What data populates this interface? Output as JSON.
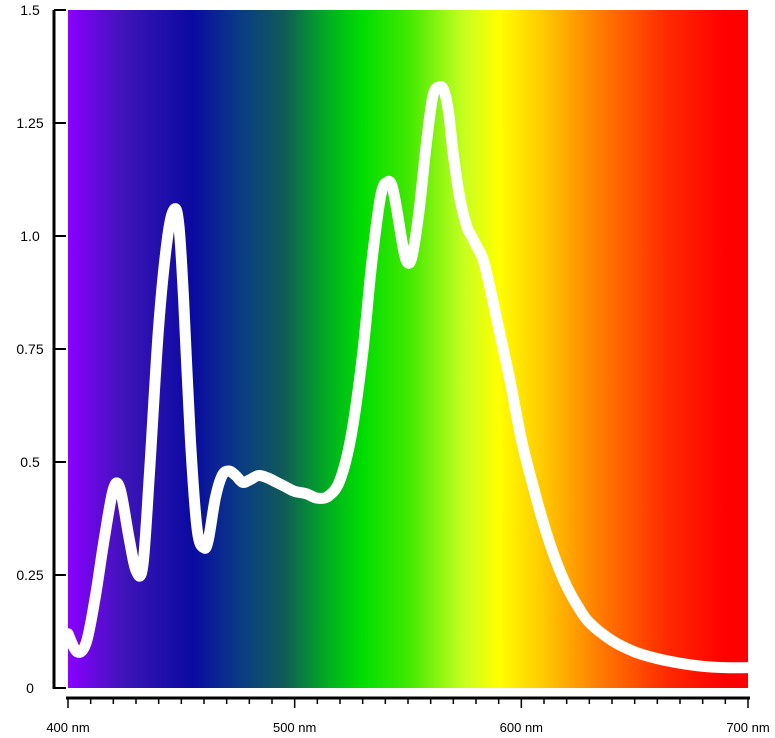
{
  "chart_data": {
    "type": "line",
    "title": "",
    "xlabel": "",
    "ylabel": "",
    "xlim": [
      400,
      700
    ],
    "ylim": [
      0,
      1.5
    ],
    "xtick_labels": [
      {
        "value": 400,
        "label": "400 nm"
      },
      {
        "value": 500,
        "label": "500 nm"
      },
      {
        "value": 600,
        "label": "600 nm"
      },
      {
        "value": 700,
        "label": "700 nm"
      }
    ],
    "ytick_labels": [
      {
        "value": 0,
        "label": "0"
      },
      {
        "value": 0.25,
        "label": "0.25"
      },
      {
        "value": 0.5,
        "label": "0.5"
      },
      {
        "value": 0.75,
        "label": "0.75"
      },
      {
        "value": 1.0,
        "label": "1.0"
      },
      {
        "value": 1.25,
        "label": "1.25"
      },
      {
        "value": 1.5,
        "label": "1.5"
      }
    ],
    "background": "visible spectrum gradient",
    "spectrum_colors": [
      {
        "nm": 400,
        "color": "#8A00FF"
      },
      {
        "nm": 425,
        "color": "#3D14B8"
      },
      {
        "nm": 455,
        "color": "#0A0AA0"
      },
      {
        "nm": 475,
        "color": "#0A3A86"
      },
      {
        "nm": 495,
        "color": "#105A58"
      },
      {
        "nm": 515,
        "color": "#00B020"
      },
      {
        "nm": 530,
        "color": "#00DD00"
      },
      {
        "nm": 550,
        "color": "#40E800"
      },
      {
        "nm": 575,
        "color": "#C8FF20"
      },
      {
        "nm": 590,
        "color": "#FFFF00"
      },
      {
        "nm": 610,
        "color": "#FFC800"
      },
      {
        "nm": 635,
        "color": "#FF7A00"
      },
      {
        "nm": 665,
        "color": "#FF2800"
      },
      {
        "nm": 690,
        "color": "#FF0000"
      },
      {
        "nm": 700,
        "color": "#FF0000"
      }
    ],
    "series": [
      {
        "color": "#FFFFFF",
        "x": [
          400,
          404,
          408,
          412,
          416,
          420,
          423,
          427,
          430,
          433,
          436,
          440,
          444,
          447,
          449,
          451,
          454,
          457,
          460,
          462,
          465,
          468,
          471,
          474,
          477,
          480,
          484,
          488,
          492,
          496,
          500,
          505,
          510,
          515,
          520,
          525,
          530,
          534,
          538,
          541,
          543,
          545,
          548,
          550,
          552,
          555,
          558,
          561,
          564,
          566,
          568,
          570,
          573,
          576,
          578,
          580,
          583,
          586,
          589,
          592,
          595,
          600,
          605,
          610,
          615,
          620,
          625,
          630,
          640,
          650,
          660,
          670,
          680,
          690,
          700
        ],
        "y": [
          0.12,
          0.08,
          0.1,
          0.2,
          0.33,
          0.44,
          0.44,
          0.33,
          0.26,
          0.27,
          0.48,
          0.8,
          1.0,
          1.06,
          1.02,
          0.86,
          0.55,
          0.35,
          0.31,
          0.33,
          0.42,
          0.47,
          0.48,
          0.47,
          0.455,
          0.46,
          0.47,
          0.465,
          0.455,
          0.445,
          0.435,
          0.43,
          0.42,
          0.425,
          0.46,
          0.56,
          0.74,
          0.94,
          1.09,
          1.12,
          1.11,
          1.06,
          0.97,
          0.94,
          0.96,
          1.06,
          1.2,
          1.31,
          1.33,
          1.32,
          1.27,
          1.18,
          1.08,
          1.02,
          1.0,
          0.98,
          0.95,
          0.89,
          0.82,
          0.75,
          0.68,
          0.55,
          0.45,
          0.36,
          0.285,
          0.225,
          0.18,
          0.145,
          0.105,
          0.08,
          0.065,
          0.055,
          0.048,
          0.045,
          0.045
        ]
      }
    ]
  }
}
